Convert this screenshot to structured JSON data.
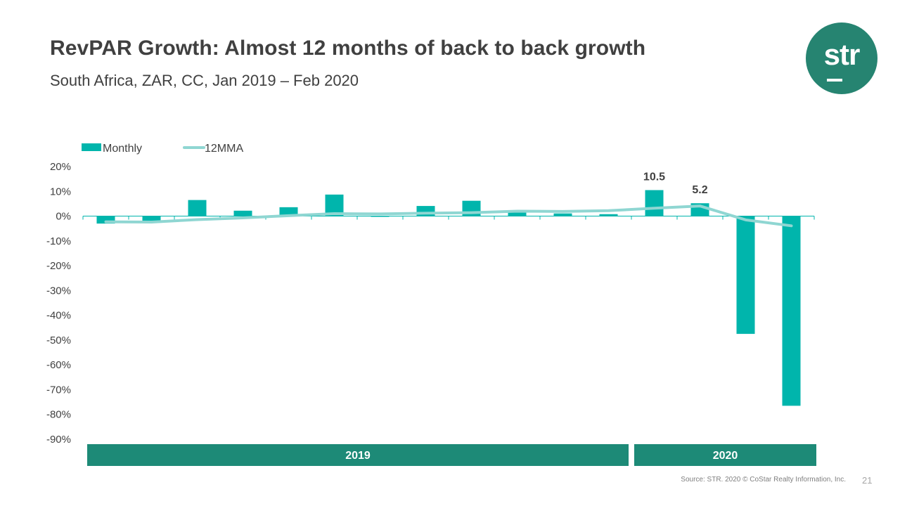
{
  "slide": {
    "title": "RevPAR Growth: Almost 12 months of back to back growth",
    "subtitle": "South Africa, ZAR, CC, Jan 2019  –  Feb 2020",
    "logo_text": "str",
    "source": "Source: STR. 2020 © CoStar Realty Information, Inc.",
    "page_number": "21"
  },
  "colors": {
    "bar": "#00b5ac",
    "line": "#8fd6d2",
    "band": "#1d8a77",
    "axis": "#00b5ac",
    "logo": "#268471"
  },
  "chart_data": {
    "type": "bar",
    "title": "",
    "xlabel": "",
    "ylabel": "",
    "ylim": [
      -90,
      20
    ],
    "y_ticks": [
      "20%",
      "10%",
      "0%",
      "-10%",
      "-20%",
      "-30%",
      "-40%",
      "-50%",
      "-60%",
      "-70%",
      "-80%",
      "-90%"
    ],
    "legend_placement": "top-left",
    "grid": false,
    "categories": [
      "",
      "",
      "",
      "",
      "",
      "",
      "",
      "",
      "",
      "",
      "",
      "",
      "",
      "",
      "",
      ""
    ],
    "series": [
      {
        "name": "Monthly",
        "kind": "bar",
        "values": [
          -3.0,
          -2.0,
          6.5,
          2.2,
          3.6,
          8.7,
          0.0,
          4.1,
          6.2,
          1.8,
          1.1,
          0.8,
          10.5,
          5.2,
          -47.5,
          -76.5
        ],
        "data_labels": [
          null,
          null,
          null,
          null,
          null,
          null,
          null,
          null,
          null,
          null,
          null,
          null,
          "10.5",
          "5.2",
          null,
          null
        ]
      },
      {
        "name": "12MMA",
        "kind": "line",
        "values": [
          -2.3,
          -2.4,
          -1.4,
          -0.7,
          0.2,
          1.0,
          0.9,
          1.2,
          1.4,
          2.0,
          1.9,
          2.2,
          3.2,
          4.1,
          -1.5,
          -3.9
        ]
      }
    ],
    "year_bands": [
      {
        "label": "2019",
        "start_index": 0,
        "end_index": 11
      },
      {
        "label": "2020",
        "start_index": 12,
        "end_index": 15
      }
    ]
  }
}
